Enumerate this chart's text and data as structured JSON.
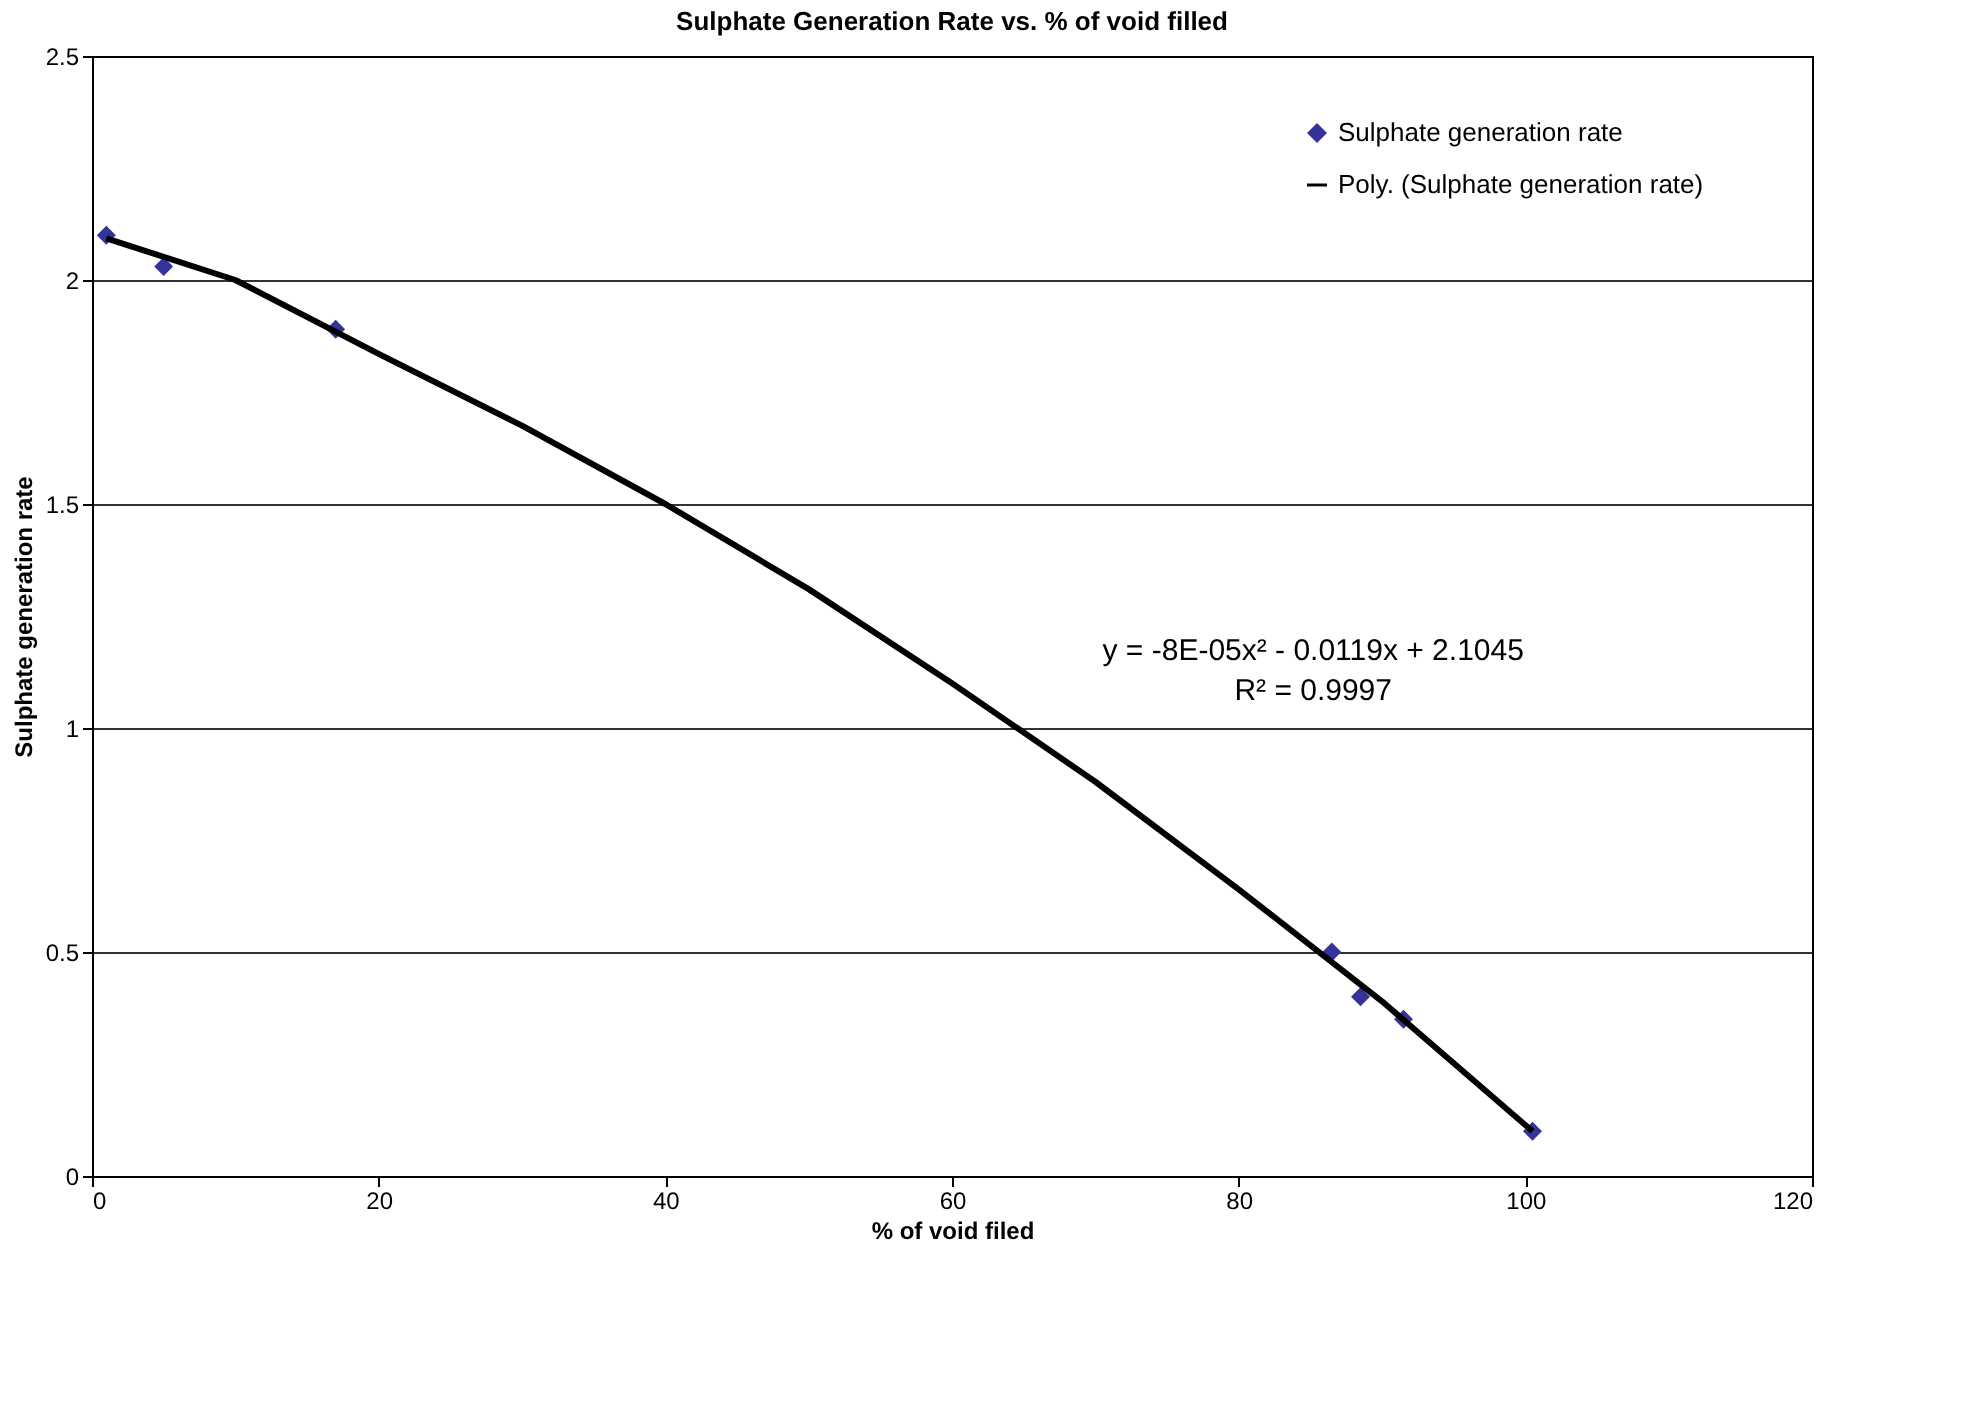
{
  "chart_data": {
    "type": "scatter",
    "title": "Sulphate Generation Rate vs. % of void filled",
    "xlabel": "% of void filed",
    "ylabel": "Sulphate generation rate",
    "annotations": [
      "y = -8E-05x² - 0.0119x + 2.1045",
      "R² = 0.9997"
    ],
    "series": [
      {
        "name": "Sulphate generation rate",
        "marker": "diamond",
        "color": "#333399",
        "x": [
          1,
          5,
          17,
          86.5,
          88.5,
          91.5,
          100.5
        ],
        "values": [
          2.1,
          2.03,
          1.89,
          0.5,
          0.4,
          0.35,
          0.1
        ]
      },
      {
        "name": "Poly. (Sulphate generation rate)",
        "type": "line",
        "line_style": "solid",
        "color": "#000000",
        "x": [
          1,
          10,
          20,
          30,
          40,
          50,
          60,
          70,
          80,
          90,
          100.5
        ],
        "values": [
          2.093,
          2.0,
          1.835,
          1.675,
          1.5,
          1.31,
          1.1,
          0.88,
          0.64,
          0.39,
          0.1
        ]
      }
    ],
    "xlim": [
      0,
      120
    ],
    "xticks": [
      0,
      20,
      40,
      60,
      80,
      100,
      120
    ],
    "ylim": [
      0,
      2.5
    ],
    "yticks": [
      0,
      0.5,
      1,
      1.5,
      2,
      2.5
    ],
    "grid": "y",
    "legend": "top right"
  }
}
